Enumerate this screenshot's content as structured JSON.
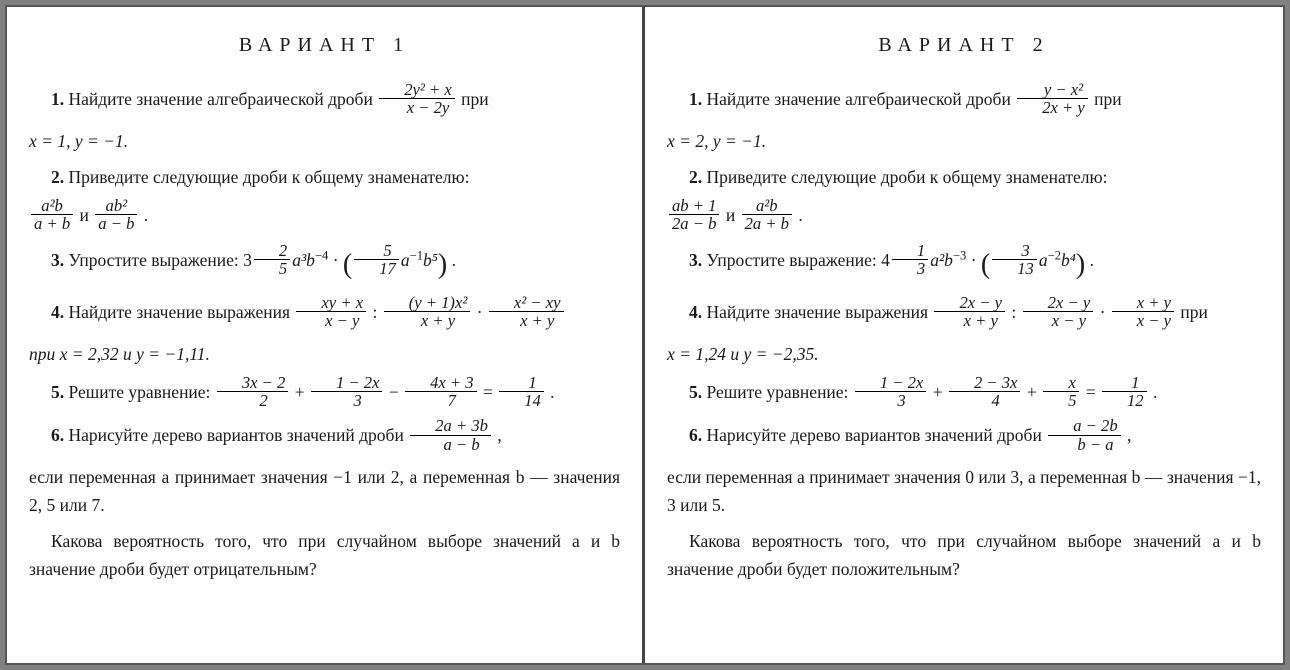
{
  "left": {
    "title": "ВАРИАНТ 1",
    "p1_a": "1.",
    "p1_b": " Найдите значение алгебраической дроби ",
    "p1_frac_top": "2y² + x",
    "p1_frac_bot": "x − 2y",
    "p1_c": " при",
    "p1_d": "x = 1, y = −1.",
    "p2_a": "2.",
    "p2_b": " Приведите следующие дроби к общему знаменателю:",
    "p2_f1_top": "a²b",
    "p2_f1_bot": "a + b",
    "p2_and": " и ",
    "p2_f2_top": "ab²",
    "p2_f2_bot": "a − b",
    "p2_dot": " .",
    "p3_a": "3.",
    "p3_b": " Упростите выражение:  3",
    "p3_m1_top": "2",
    "p3_m1_bot": "5",
    "p3_c": "a³b",
    "p3_c_sup": "−4",
    "p3_d": " · ",
    "p3_m2_top": "5",
    "p3_m2_bot": "17",
    "p3_e": "a",
    "p3_e_sup": "−1",
    "p3_f": "b⁵",
    "p3_g": " .",
    "p4_a": "4.",
    "p4_b": " Найдите значение выражения ",
    "p4_f1_top": "xy + x",
    "p4_f1_bot": "x − y",
    "p4_c": " : ",
    "p4_f2_top": "(y + 1)x²",
    "p4_f2_bot": "x + y",
    "p4_d": " · ",
    "p4_f3_top": "x² − xy",
    "p4_f3_bot": "x + y",
    "p4_e": "при x = 2,32 и y = −1,11.",
    "p5_a": "5.",
    "p5_b": " Решите уравнение:  ",
    "p5_f1_top": "3x − 2",
    "p5_f1_bot": "2",
    "p5_p": " + ",
    "p5_f2_top": "1 − 2x",
    "p5_f2_bot": "3",
    "p5_m": " − ",
    "p5_f3_top": "4x + 3",
    "p5_f3_bot": "7",
    "p5_eq": " = ",
    "p5_f4_top": "1",
    "p5_f4_bot": "14",
    "p5_dot": " .",
    "p6_a": "6.",
    "p6_b": " Нарисуйте дерево вариантов значений дроби ",
    "p6_f_top": "2a + 3b",
    "p6_f_bot": "a − b",
    "p6_c": " ,",
    "p6_d": "если переменная a принимает значения −1 или 2, а переменная b — значения 2, 5 или 7.",
    "p6_e": "Какова вероятность того, что при случайном выборе значений a и b значение дроби будет отрицательным?"
  },
  "right": {
    "title": "ВАРИАНТ 2",
    "p1_a": "1.",
    "p1_b": " Найдите значение алгебраической дроби ",
    "p1_frac_top": "y − x²",
    "p1_frac_bot": "2x + y",
    "p1_c": " при",
    "p1_d": "x = 2, y = −1.",
    "p2_a": "2.",
    "p2_b": " Приведите следующие дроби к общему знаменателю:",
    "p2_f1_top": "ab + 1",
    "p2_f1_bot": "2a − b",
    "p2_and": " и ",
    "p2_f2_top": "a²b",
    "p2_f2_bot": "2a + b",
    "p2_dot": " .",
    "p3_a": "3.",
    "p3_b": " Упростите выражение:  4",
    "p3_m1_top": "1",
    "p3_m1_bot": "3",
    "p3_c": "a²b",
    "p3_c_sup": "−3",
    "p3_d": " · ",
    "p3_m2_top": "3",
    "p3_m2_bot": "13",
    "p3_e": "a",
    "p3_e_sup": "−2",
    "p3_f": "b⁴",
    "p3_g": " .",
    "p4_a": "4.",
    "p4_b": " Найдите значение выражения ",
    "p4_f1_top": "2x − y",
    "p4_f1_bot": "x + y",
    "p4_c": " : ",
    "p4_f2_top": "2x − y",
    "p4_f2_bot": "x − y",
    "p4_d": " · ",
    "p4_f3_top": "x + y",
    "p4_f3_bot": "x − y",
    "p4_e2": " при",
    "p4_e": "x = 1,24 и y = −2,35.",
    "p5_a": "5.",
    "p5_b": " Решите уравнение:  ",
    "p5_f1_top": "1 − 2x",
    "p5_f1_bot": "3",
    "p5_p": " + ",
    "p5_f2_top": "2 − 3x",
    "p5_f2_bot": "4",
    "p5_p2": " + ",
    "p5_f3_top": "x",
    "p5_f3_bot": "5",
    "p5_eq": " = ",
    "p5_f4_top": "1",
    "p5_f4_bot": "12",
    "p5_dot": " .",
    "p6_a": "6.",
    "p6_b": " Нарисуйте дерево вариантов значений дроби ",
    "p6_f_top": "a − 2b",
    "p6_f_bot": "b − a",
    "p6_c": " ,",
    "p6_d": "если переменная a принимает значения 0 или 3, а переменная b — значения −1, 3 или 5.",
    "p6_e": "Какова вероятность того, что при случайном выборе значений a и b значение дроби будет положительным?"
  }
}
